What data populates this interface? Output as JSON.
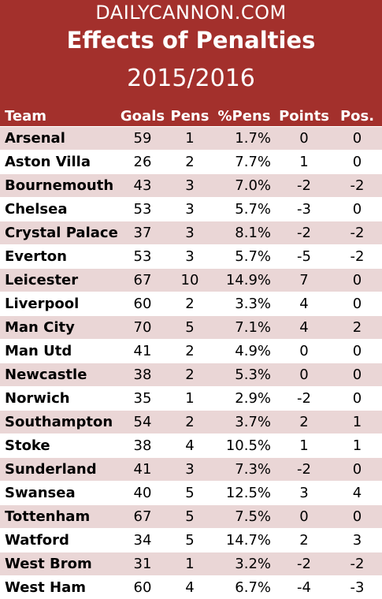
{
  "header": {
    "site": "DAILYCANNON.COM",
    "title": "Effects of Penalties",
    "season": "2015/2016"
  },
  "columns": {
    "team": "Team",
    "goals": "Goals",
    "pens": "Pens",
    "pct": "%Pens",
    "points": "Points",
    "pos": "Pos."
  },
  "rows": [
    {
      "team": "Arsenal",
      "goals": "59",
      "pens": "1",
      "pct": "1.7%",
      "points": "0",
      "pos": "0"
    },
    {
      "team": "Aston Villa",
      "goals": "26",
      "pens": "2",
      "pct": "7.7%",
      "points": "1",
      "pos": "0"
    },
    {
      "team": "Bournemouth",
      "goals": "43",
      "pens": "3",
      "pct": "7.0%",
      "points": "-2",
      "pos": "-2"
    },
    {
      "team": "Chelsea",
      "goals": "53",
      "pens": "3",
      "pct": "5.7%",
      "points": "-3",
      "pos": "0"
    },
    {
      "team": "Crystal Palace",
      "goals": "37",
      "pens": "3",
      "pct": "8.1%",
      "points": "-2",
      "pos": "-2"
    },
    {
      "team": "Everton",
      "goals": "53",
      "pens": "3",
      "pct": "5.7%",
      "points": "-5",
      "pos": "-2"
    },
    {
      "team": "Leicester",
      "goals": "67",
      "pens": "10",
      "pct": "14.9%",
      "points": "7",
      "pos": "0"
    },
    {
      "team": "Liverpool",
      "goals": "60",
      "pens": "2",
      "pct": "3.3%",
      "points": "4",
      "pos": "0"
    },
    {
      "team": "Man City",
      "goals": "70",
      "pens": "5",
      "pct": "7.1%",
      "points": "4",
      "pos": "2"
    },
    {
      "team": "Man Utd",
      "goals": "41",
      "pens": "2",
      "pct": "4.9%",
      "points": "0",
      "pos": "0"
    },
    {
      "team": "Newcastle",
      "goals": "38",
      "pens": "2",
      "pct": "5.3%",
      "points": "0",
      "pos": "0"
    },
    {
      "team": "Norwich",
      "goals": "35",
      "pens": "1",
      "pct": "2.9%",
      "points": "-2",
      "pos": "0"
    },
    {
      "team": "Southampton",
      "goals": "54",
      "pens": "2",
      "pct": "3.7%",
      "points": "2",
      "pos": "1"
    },
    {
      "team": "Stoke",
      "goals": "38",
      "pens": "4",
      "pct": "10.5%",
      "points": "1",
      "pos": "1"
    },
    {
      "team": "Sunderland",
      "goals": "41",
      "pens": "3",
      "pct": "7.3%",
      "points": "-2",
      "pos": "0"
    },
    {
      "team": "Swansea",
      "goals": "40",
      "pens": "5",
      "pct": "12.5%",
      "points": "3",
      "pos": "4"
    },
    {
      "team": "Tottenham",
      "goals": "67",
      "pens": "5",
      "pct": "7.5%",
      "points": "0",
      "pos": "0"
    },
    {
      "team": "Watford",
      "goals": "34",
      "pens": "5",
      "pct": "14.7%",
      "points": "2",
      "pos": "3"
    },
    {
      "team": "West Brom",
      "goals": "31",
      "pens": "1",
      "pct": "3.2%",
      "points": "-2",
      "pos": "-2"
    },
    {
      "team": "West Ham",
      "goals": "60",
      "pens": "4",
      "pct": "6.7%",
      "points": "-4",
      "pos": "-3"
    }
  ]
}
